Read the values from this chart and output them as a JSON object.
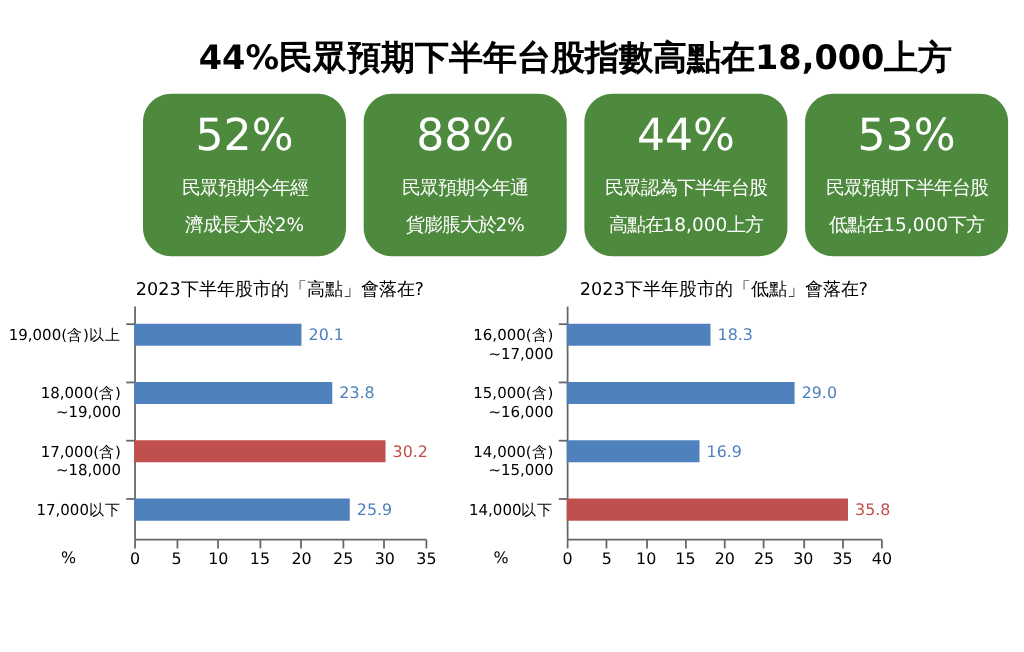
{
  "chart_data": [
    {
      "type": "other",
      "title": "44%民眾預期下半年台股指數高點在18,000上方",
      "color": "#4e8a3e",
      "annotations": [
        "52%",
        "民眾預期今年經",
        "濟成長大於2%",
        "88%",
        "民眾預期今年通",
        "貨膨脹大於2%",
        "44%",
        "民眾認為下半年台股",
        "高點在18,000上方",
        "53%",
        "民眾預期下半年台股",
        "低點在15,000下方"
      ]
    },
    {
      "type": "bar",
      "orientation": "horizontal",
      "title": "2023下半年股市的「高點」會落在?",
      "xlabel": "%",
      "categories": [
        "19,000(含)以上",
        "18,000(含)~19,000",
        "17,000(含)~18,000",
        "17,000以下"
      ],
      "values": [
        20.1,
        23.8,
        30.2,
        25.9
      ],
      "colors": [
        "#4f81bd",
        "#4f81bd",
        "#c0504d",
        "#4f81bd"
      ],
      "xlim": [
        0,
        35
      ],
      "xticks": [
        0,
        5,
        10,
        15,
        20,
        25,
        30,
        35
      ],
      "data_labels": true,
      "grid": false,
      "legend": false
    },
    {
      "type": "bar",
      "orientation": "horizontal",
      "title": "2023下半年股市的「低點」會落在?",
      "xlabel": "%",
      "categories": [
        "16,000(含)~17,000",
        "15,000(含)~16,000",
        "14,000(含)~15,000",
        "14,000以下"
      ],
      "values": [
        18.3,
        29.0,
        16.9,
        35.8
      ],
      "value_labels": [
        "18.3",
        "29.0",
        "16.9",
        "35.8"
      ],
      "colors": [
        "#4f81bd",
        "#4f81bd",
        "#4f81bd",
        "#c0504d"
      ],
      "xlim": [
        0,
        40
      ],
      "xticks": [
        0,
        5,
        10,
        15,
        20,
        25,
        30,
        35,
        40
      ],
      "data_labels": true,
      "grid": false,
      "legend": false
    }
  ]
}
